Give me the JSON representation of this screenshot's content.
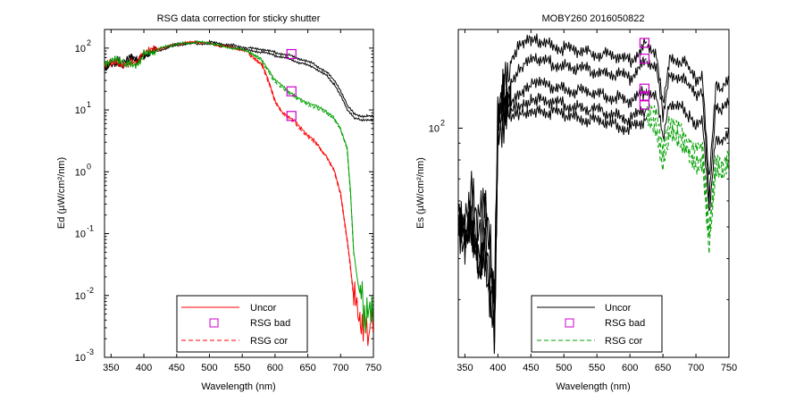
{
  "chart_data": [
    {
      "type": "line",
      "title": "RSG data correction for sticky shutter",
      "xlabel": "Wavelength (nm)",
      "ylabel": "Ed (µW/cm²/nm)",
      "xlim": [
        340,
        750
      ],
      "ylim": [
        0.001,
        200
      ],
      "yscale": "log",
      "xticks": [
        350,
        400,
        450,
        500,
        550,
        600,
        650,
        700,
        750
      ],
      "yticks": [
        {
          "value": 100,
          "mant": "10",
          "exp": "2"
        },
        {
          "value": 10,
          "mant": "10",
          "exp": "1"
        },
        {
          "value": 1,
          "mant": "10",
          "exp": "0"
        },
        {
          "value": 0.1,
          "mant": "10",
          "exp": "-1"
        },
        {
          "value": 0.01,
          "mant": "10",
          "exp": "-2"
        },
        {
          "value": 0.001,
          "mant": "10",
          "exp": "-3"
        }
      ],
      "legend": {
        "position": "bottom-center",
        "entries": [
          "Uncor",
          "RSG bad",
          "RSG cor"
        ]
      },
      "series": [
        {
          "name": "Uncor",
          "color": "#000000",
          "style": "solid",
          "x": [
            340,
            350,
            360,
            370,
            380,
            390,
            400,
            420,
            440,
            460,
            480,
            500,
            520,
            540,
            560,
            580,
            600,
            620,
            640,
            660,
            680,
            690,
            700,
            710,
            720,
            730,
            740,
            750
          ],
          "values": [
            50,
            60,
            65,
            55,
            70,
            60,
            80,
            95,
            110,
            120,
            125,
            125,
            115,
            110,
            100,
            95,
            85,
            78,
            65,
            55,
            40,
            30,
            20,
            12,
            9,
            8,
            8,
            8
          ]
        },
        {
          "name": "Uncor",
          "color": "#000000",
          "style": "solid",
          "x": [
            340,
            350,
            360,
            370,
            380,
            390,
            400,
            420,
            440,
            460,
            480,
            500,
            520,
            540,
            560,
            580,
            600,
            620,
            640,
            660,
            680,
            690,
            700,
            710,
            720,
            730,
            740,
            750
          ],
          "values": [
            50,
            58,
            62,
            52,
            66,
            57,
            76,
            90,
            105,
            115,
            120,
            118,
            108,
            102,
            92,
            86,
            76,
            68,
            57,
            48,
            35,
            26,
            17,
            10,
            7.5,
            7,
            7,
            7
          ]
        },
        {
          "name": "RSG cor",
          "color": "#ff0000",
          "style": "solid",
          "x": [
            340,
            350,
            360,
            370,
            380,
            390,
            400,
            420,
            440,
            460,
            480,
            500,
            520,
            540,
            560,
            580,
            590,
            600,
            610,
            620,
            630,
            640,
            650,
            660,
            670,
            680,
            690,
            700,
            710,
            715,
            720,
            725,
            730,
            735,
            740,
            745,
            750
          ],
          "values": [
            50,
            60,
            62,
            55,
            60,
            55,
            80,
            95,
            110,
            120,
            125,
            120,
            108,
            98,
            85,
            55,
            30,
            14,
            9.5,
            8,
            6.8,
            5,
            3.8,
            3.2,
            2.3,
            1.7,
            1.1,
            0.45,
            0.08,
            0.03,
            0.01,
            0.006,
            0.004,
            0.003,
            0.003,
            0.003,
            0.003
          ]
        },
        {
          "name": "RSG cor",
          "color": "#ff0000",
          "style": "dashed",
          "x": [
            560,
            580,
            590,
            600,
            610,
            620,
            630,
            640,
            650,
            660,
            670,
            680,
            690,
            700,
            710,
            715,
            720
          ],
          "values": [
            80,
            52,
            28,
            13,
            9,
            7.5,
            6.3,
            4.7,
            3.6,
            3,
            2.2,
            1.6,
            1.05,
            0.42,
            0.075,
            0.028,
            0.009
          ]
        },
        {
          "name": "RSG cor",
          "color": "#00a000",
          "style": "solid",
          "x": [
            340,
            350,
            360,
            370,
            380,
            390,
            400,
            420,
            440,
            460,
            480,
            500,
            520,
            540,
            560,
            580,
            590,
            600,
            610,
            620,
            630,
            640,
            650,
            660,
            670,
            680,
            690,
            700,
            710,
            715,
            720,
            725,
            730,
            735,
            740,
            750
          ],
          "values": [
            50,
            60,
            62,
            55,
            60,
            55,
            80,
            95,
            110,
            120,
            125,
            120,
            108,
            98,
            88,
            65,
            45,
            30,
            25,
            20,
            17,
            15,
            13,
            12,
            10.5,
            9,
            7.5,
            5,
            2.5,
            0.5,
            0.05,
            0.02,
            0.01,
            0.006,
            0.005,
            0.004
          ]
        },
        {
          "name": "RSG cor",
          "color": "#00a000",
          "style": "dashed",
          "x": [
            560,
            580,
            590,
            600,
            610,
            620,
            630,
            640,
            650,
            660,
            670,
            680,
            690,
            700,
            710,
            715,
            720
          ],
          "values": [
            84,
            61,
            42,
            28,
            23,
            18.5,
            15.8,
            14,
            12.2,
            11.2,
            9.8,
            8.4,
            7,
            4.7,
            2.3,
            0.45,
            0.045
          ]
        }
      ],
      "markers": [
        {
          "name": "RSG bad",
          "x": 625,
          "y": 80
        },
        {
          "name": "RSG bad",
          "x": 625,
          "y": 20
        },
        {
          "name": "RSG bad",
          "x": 625,
          "y": 8
        }
      ]
    },
    {
      "type": "line",
      "title": "MOBY260  2016050822",
      "xlabel": "Wavelength (nm)",
      "ylabel": "Es (µW/cm²/nm)",
      "xlim": [
        340,
        750
      ],
      "ylim": [
        20,
        200
      ],
      "yscale": "log",
      "xticks": [
        350,
        400,
        450,
        500,
        550,
        600,
        650,
        700,
        750
      ],
      "yticks": [
        {
          "value": 100,
          "mant": "10",
          "exp": "2"
        }
      ],
      "legend": {
        "position": "bottom-center",
        "entries": [
          "Uncor",
          "RSG bad",
          "RSG cor"
        ]
      },
      "series": [
        {
          "name": "Uncor",
          "color": "#000000",
          "style": "solid",
          "x": [
            340,
            350,
            360,
            370,
            380,
            390,
            395,
            400,
            410,
            420,
            430,
            440,
            450,
            460,
            480,
            500,
            520,
            540,
            560,
            580,
            600,
            620,
            625
          ],
          "values": [
            60,
            55,
            65,
            50,
            58,
            40,
            30,
            120,
            150,
            160,
            175,
            180,
            185,
            185,
            180,
            175,
            172,
            170,
            168,
            165,
            160,
            178,
            182
          ]
        },
        {
          "name": "Uncor",
          "color": "#000000",
          "style": "solid",
          "x": [
            340,
            350,
            360,
            370,
            380,
            390,
            395,
            400,
            410,
            420,
            430,
            440,
            450,
            460,
            480,
            500,
            520,
            540,
            560,
            580,
            600,
            620,
            625
          ],
          "values": [
            55,
            50,
            60,
            46,
            52,
            36,
            28,
            110,
            130,
            140,
            150,
            155,
            160,
            160,
            158,
            155,
            152,
            150,
            148,
            146,
            142,
            158,
            163
          ]
        },
        {
          "name": "Uncor",
          "color": "#000000",
          "style": "solid",
          "x": [
            340,
            350,
            360,
            370,
            380,
            390,
            395,
            400,
            410,
            420,
            430,
            440,
            450,
            460,
            480,
            500,
            520,
            540,
            560,
            580,
            600,
            620,
            625
          ],
          "values": [
            50,
            46,
            54,
            42,
            47,
            33,
            26,
            100,
            115,
            122,
            128,
            132,
            135,
            136,
            134,
            132,
            130,
            128,
            126,
            124,
            120,
            128,
            132
          ]
        },
        {
          "name": "Uncor",
          "color": "#000000",
          "style": "solid",
          "x": [
            340,
            350,
            360,
            370,
            380,
            390,
            395,
            400,
            410,
            420,
            430,
            440,
            450,
            460,
            480,
            500,
            520,
            540,
            560,
            580,
            600,
            620,
            625
          ],
          "values": [
            48,
            44,
            51,
            40,
            45,
            31,
            25,
            95,
            108,
            114,
            118,
            120,
            122,
            122,
            120,
            118,
            116,
            114,
            112,
            110,
            106,
            112,
            115
          ]
        },
        {
          "name": "Uncor",
          "color": "#000000",
          "style": "solid",
          "x": [
            340,
            350,
            360,
            370,
            380,
            390,
            395,
            400,
            410,
            420,
            430,
            440,
            450,
            460,
            480,
            500,
            520,
            540,
            560,
            580,
            600,
            620,
            625
          ],
          "values": [
            45,
            42,
            48,
            38,
            43,
            29,
            24,
            90,
            102,
            106,
            110,
            112,
            114,
            114,
            112,
            110,
            108,
            106,
            104,
            102,
            100,
            104,
            108
          ]
        },
        {
          "name": "Uncor",
          "color": "#000000",
          "style": "solid",
          "x": [
            625,
            640,
            650,
            660,
            680,
            690,
            700,
            710,
            720,
            730,
            740,
            750
          ],
          "values": [
            180,
            172,
            120,
            165,
            160,
            150,
            140,
            145,
            70,
            135,
            130,
            140
          ]
        },
        {
          "name": "Uncor",
          "color": "#000000",
          "style": "solid",
          "x": [
            625,
            640,
            650,
            660,
            680,
            690,
            700,
            710,
            720,
            730,
            740,
            750
          ],
          "values": [
            162,
            155,
            110,
            148,
            142,
            133,
            124,
            128,
            62,
            118,
            114,
            122
          ]
        },
        {
          "name": "Uncor",
          "color": "#000000",
          "style": "solid",
          "x": [
            625,
            640,
            650,
            660,
            680,
            690,
            700,
            710,
            720,
            730,
            740,
            750
          ],
          "values": [
            130,
            124,
            92,
            120,
            115,
            108,
            100,
            104,
            55,
            95,
            92,
            100
          ]
        },
        {
          "name": "RSG cor",
          "color": "#00a000",
          "style": "dashed",
          "x": [
            625,
            640,
            650,
            660,
            680,
            690,
            700,
            710,
            720,
            730,
            740,
            750
          ],
          "values": [
            115,
            110,
            85,
            105,
            98,
            92,
            86,
            88,
            48,
            82,
            79,
            86
          ]
        },
        {
          "name": "RSG cor",
          "color": "#00a000",
          "style": "dashed",
          "x": [
            625,
            640,
            650,
            660,
            680,
            690,
            700,
            710,
            720,
            730,
            740,
            750
          ],
          "values": [
            108,
            102,
            80,
            98,
            92,
            86,
            80,
            82,
            45,
            76,
            74,
            80
          ]
        },
        {
          "name": "RSG cor",
          "color": "#00a000",
          "style": "dashed",
          "x": [
            625,
            640,
            650,
            660,
            680,
            690,
            700,
            710,
            720,
            730,
            740,
            750
          ],
          "values": [
            104,
            98,
            76,
            94,
            88,
            82,
            76,
            78,
            42,
            72,
            70,
            76
          ]
        }
      ],
      "markers": [
        {
          "name": "RSG bad",
          "x": 622,
          "y": 182
        },
        {
          "name": "RSG bad",
          "x": 622,
          "y": 163
        },
        {
          "name": "RSG bad",
          "x": 622,
          "y": 132
        },
        {
          "name": "RSG bad",
          "x": 622,
          "y": 125
        },
        {
          "name": "RSG bad",
          "x": 622,
          "y": 118
        }
      ]
    }
  ]
}
